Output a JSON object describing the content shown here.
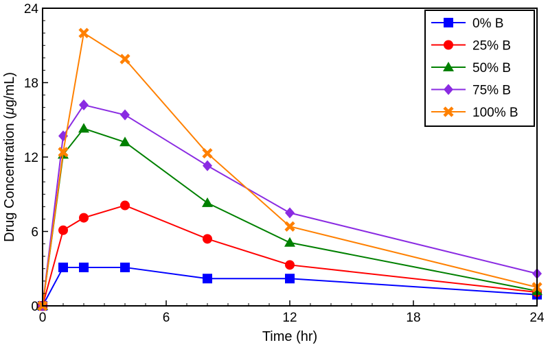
{
  "chart_data": {
    "type": "line",
    "title": "",
    "xlabel": "Time (hr)",
    "ylabel_prefix": "Drug Concentration (",
    "ylabel_mu": "μ",
    "ylabel_suffix": "g/mL)",
    "xlim": [
      0,
      24
    ],
    "ylim": [
      0,
      24
    ],
    "x_ticks": [
      0,
      6,
      12,
      18,
      24
    ],
    "y_ticks": [
      0,
      6,
      12,
      18,
      24
    ],
    "x_tick_labels": [
      "0",
      "6",
      "12",
      "18",
      "24"
    ],
    "y_tick_labels": [
      "0",
      "6",
      "12",
      "18",
      "24"
    ],
    "grid": false,
    "legend_position": "top-right",
    "x": [
      0,
      1,
      2,
      4,
      8,
      12,
      24
    ],
    "series": [
      {
        "name": "0% B",
        "color": "#0000ff",
        "marker": "square",
        "values": [
          0,
          3.1,
          3.1,
          3.1,
          2.2,
          2.2,
          0.9
        ]
      },
      {
        "name": "25% B",
        "color": "#ff0000",
        "marker": "circle",
        "values": [
          0,
          6.1,
          7.1,
          8.1,
          5.4,
          3.3,
          1.1
        ]
      },
      {
        "name": "50% B",
        "color": "#008000",
        "marker": "triangle",
        "values": [
          0,
          12.2,
          14.3,
          13.2,
          8.3,
          5.1,
          1.2
        ]
      },
      {
        "name": "75% B",
        "color": "#8a2be2",
        "marker": "diamond",
        "values": [
          0,
          13.7,
          16.2,
          15.4,
          11.3,
          7.5,
          2.6
        ]
      },
      {
        "name": "100% B",
        "color": "#ff8000",
        "marker": "x",
        "values": [
          0,
          12.4,
          22.0,
          19.9,
          12.3,
          6.4,
          1.5
        ]
      }
    ]
  }
}
